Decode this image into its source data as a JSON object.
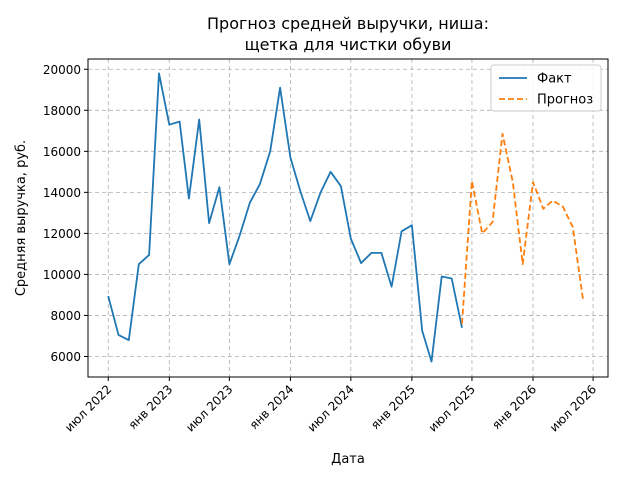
{
  "chart_data": {
    "type": "line",
    "title_lines": [
      "Прогноз средней выручки, ниша:",
      "щетка для чистки обуви"
    ],
    "xlabel": "Дата",
    "ylabel": "Средняя выручка, руб.",
    "ylim": [
      5000,
      20500
    ],
    "xlim": [
      "2022-05-01",
      "2026-08-15"
    ],
    "yticks": [
      6000,
      8000,
      10000,
      12000,
      14000,
      16000,
      18000,
      20000
    ],
    "xticks": [
      {
        "date": "2022-07-01",
        "label": "июл 2022"
      },
      {
        "date": "2023-01-01",
        "label": "янв 2023"
      },
      {
        "date": "2023-07-01",
        "label": "июл 2023"
      },
      {
        "date": "2024-01-01",
        "label": "янв 2024"
      },
      {
        "date": "2024-07-01",
        "label": "июл 2024"
      },
      {
        "date": "2025-01-01",
        "label": "янв 2025"
      },
      {
        "date": "2025-07-01",
        "label": "июл 2025"
      },
      {
        "date": "2026-01-01",
        "label": "янв 2026"
      },
      {
        "date": "2026-07-01",
        "label": "июл 2026"
      }
    ],
    "grid": true,
    "legend_position": "top-right",
    "series": [
      {
        "name": "Факт",
        "color": "#1f77b4",
        "style": "solid",
        "points": [
          [
            "2022-07-01",
            8950
          ],
          [
            "2022-08-01",
            7050
          ],
          [
            "2022-09-01",
            6800
          ],
          [
            "2022-10-01",
            10500
          ],
          [
            "2022-11-01",
            10950
          ],
          [
            "2022-12-01",
            19800
          ],
          [
            "2023-01-01",
            17300
          ],
          [
            "2023-02-01",
            17450
          ],
          [
            "2023-03-01",
            13700
          ],
          [
            "2023-04-01",
            17550
          ],
          [
            "2023-05-01",
            12500
          ],
          [
            "2023-06-01",
            14250
          ],
          [
            "2023-07-01",
            10500
          ],
          [
            "2023-08-01",
            11900
          ],
          [
            "2023-09-01",
            13500
          ],
          [
            "2023-10-01",
            14400
          ],
          [
            "2023-11-01",
            16000
          ],
          [
            "2023-12-01",
            19100
          ],
          [
            "2024-01-01",
            15700
          ],
          [
            "2024-02-01",
            14000
          ],
          [
            "2024-03-01",
            12600
          ],
          [
            "2024-04-01",
            14000
          ],
          [
            "2024-05-01",
            15000
          ],
          [
            "2024-06-01",
            14300
          ],
          [
            "2024-07-01",
            11750
          ],
          [
            "2024-08-01",
            10550
          ],
          [
            "2024-09-01",
            11050
          ],
          [
            "2024-10-01",
            11050
          ],
          [
            "2024-11-01",
            9400
          ],
          [
            "2024-12-01",
            12100
          ],
          [
            "2025-01-01",
            12400
          ],
          [
            "2025-02-01",
            7250
          ],
          [
            "2025-03-01",
            5750
          ],
          [
            "2025-04-01",
            9900
          ],
          [
            "2025-05-01",
            9800
          ],
          [
            "2025-06-01",
            7400
          ]
        ]
      },
      {
        "name": "Прогноз",
        "color": "#ff7f0e",
        "style": "dashed",
        "points": [
          [
            "2025-06-01",
            7600
          ],
          [
            "2025-07-01",
            14550
          ],
          [
            "2025-08-01",
            12000
          ],
          [
            "2025-09-01",
            12550
          ],
          [
            "2025-10-01",
            16850
          ],
          [
            "2025-11-01",
            14500
          ],
          [
            "2025-12-01",
            10500
          ],
          [
            "2026-01-01",
            14500
          ],
          [
            "2026-02-01",
            13200
          ],
          [
            "2026-03-01",
            13600
          ],
          [
            "2026-04-01",
            13300
          ],
          [
            "2026-05-01",
            12300
          ],
          [
            "2026-06-01",
            8750
          ]
        ]
      }
    ]
  }
}
